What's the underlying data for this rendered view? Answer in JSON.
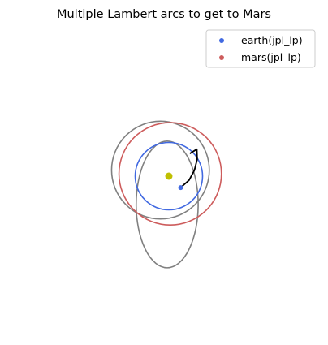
{
  "chart_data": {
    "type": "scatter",
    "title": "Multiple Lambert arcs to get to Mars",
    "xlabel": "",
    "ylabel": "",
    "axes_visible": false,
    "grid": false,
    "legend_placement": "top-right",
    "sun": {
      "x": 0,
      "y": 0,
      "color": "#bfbf00"
    },
    "series": [
      {
        "name": "earth(jpl_lp)",
        "kind": "orbit",
        "color": "#4169e1",
        "orbit": {
          "cx": 0,
          "cy": 0,
          "rx": 1.0,
          "ry": 1.0
        },
        "marker": {
          "x": 0.35,
          "y": -0.34
        }
      },
      {
        "name": "mars(jpl_lp)",
        "kind": "orbit",
        "color": "#cd5c5c",
        "orbit": {
          "cx": 0.04,
          "cy": 0.07,
          "rx": 1.52,
          "ry": 1.52
        }
      }
    ],
    "transfer_orbits": [
      {
        "color": "#808080",
        "cx": -0.25,
        "cy": 0.18,
        "rx": 1.45,
        "ry": 1.45
      },
      {
        "color": "#808080",
        "cx": -0.05,
        "cy": -0.84,
        "rx": 0.92,
        "ry": 1.88
      }
    ],
    "lambert_arc": {
      "color": "#000000",
      "points": [
        [
          0.35,
          -0.34
        ],
        [
          0.6,
          -0.12
        ],
        [
          0.76,
          0.18
        ],
        [
          0.84,
          0.5
        ],
        [
          0.83,
          0.8
        ],
        [
          0.62,
          0.67
        ]
      ]
    }
  }
}
